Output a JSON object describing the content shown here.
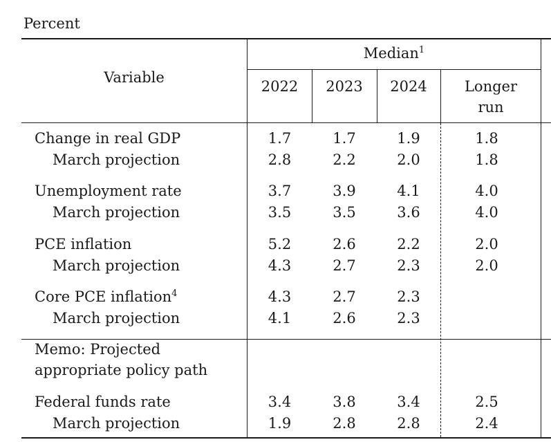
{
  "unit_label": "Percent",
  "header": {
    "variable": "Variable",
    "median": "Median",
    "median_footnote": "1",
    "years": [
      "2022",
      "2023",
      "2024"
    ],
    "longer_run_line1": "Longer",
    "longer_run_line2": "run"
  },
  "rows": [
    {
      "label": "Change in real GDP",
      "footnote": "",
      "values": [
        "1.7",
        "1.7",
        "1.9",
        "1.8"
      ]
    },
    {
      "label": "March projection",
      "footnote": "",
      "values": [
        "2.8",
        "2.2",
        "2.0",
        "1.8"
      ]
    },
    {
      "label": "Unemployment rate",
      "footnote": "",
      "values": [
        "3.7",
        "3.9",
        "4.1",
        "4.0"
      ]
    },
    {
      "label": "March projection",
      "footnote": "",
      "values": [
        "3.5",
        "3.5",
        "3.6",
        "4.0"
      ]
    },
    {
      "label": "PCE inflation",
      "footnote": "",
      "values": [
        "5.2",
        "2.6",
        "2.2",
        "2.0"
      ]
    },
    {
      "label": "March projection",
      "footnote": "",
      "values": [
        "4.3",
        "2.7",
        "2.3",
        "2.0"
      ]
    },
    {
      "label": "Core PCE inflation",
      "footnote": "4",
      "values": [
        "4.3",
        "2.7",
        "2.3",
        ""
      ]
    },
    {
      "label": "March projection",
      "footnote": "",
      "values": [
        "4.1",
        "2.6",
        "2.3",
        ""
      ]
    }
  ],
  "memo": {
    "line1": "Memo: Projected",
    "line2": "appropriate policy path"
  },
  "memo_rows": [
    {
      "label": "Federal funds rate",
      "values": [
        "3.4",
        "3.8",
        "3.4",
        "2.5"
      ]
    },
    {
      "label": "March projection",
      "values": [
        "1.9",
        "2.8",
        "2.8",
        "2.4"
      ]
    }
  ]
}
